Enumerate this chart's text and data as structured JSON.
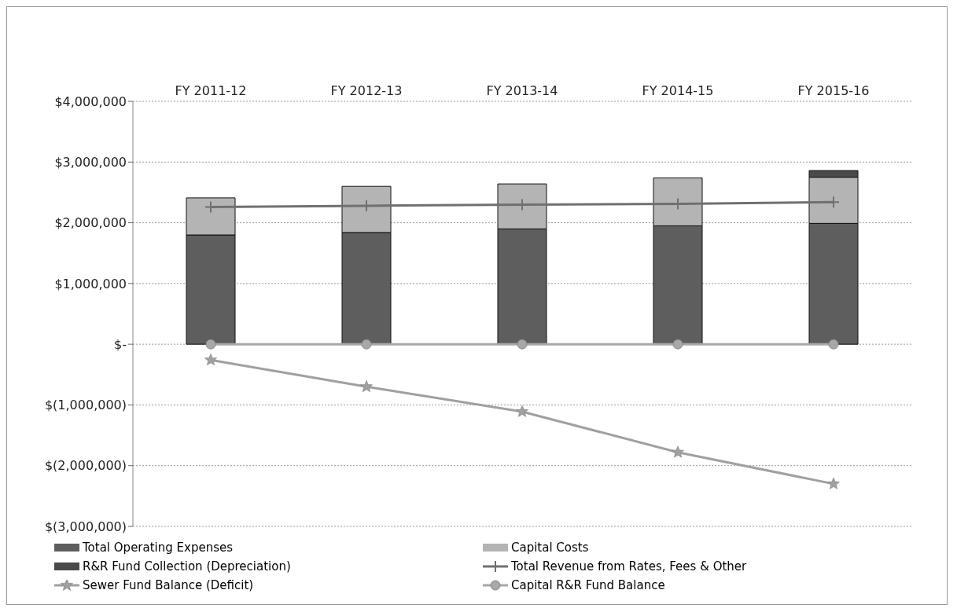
{
  "chart_data": {
    "type": "bar",
    "stacked": true,
    "categories": [
      "FY 2011-12",
      "FY 2012-13",
      "FY 2013-14",
      "FY 2014-15",
      "FY 2015-16"
    ],
    "series": [
      {
        "name": "Total Operating Expenses",
        "color": "#5e5e5e",
        "values": [
          1800000,
          1840000,
          1900000,
          1950000,
          1990000
        ]
      },
      {
        "name": "Capital Costs",
        "color": "#b4b4b4",
        "values": [
          610000,
          760000,
          740000,
          790000,
          760000
        ]
      },
      {
        "name": "R&R Fund Collection (Depreciation)",
        "color": "#4a4a4a",
        "values": [
          0,
          0,
          0,
          0,
          110000
        ]
      },
      {
        "name": "Total Revenue from Rates, Fees & Other",
        "type": "line",
        "color": "#707070",
        "marker": "cross",
        "values": [
          2260000,
          2280000,
          2300000,
          2310000,
          2340000
        ]
      },
      {
        "name": "Sewer Fund Balance (Deficit)",
        "type": "line",
        "color": "#a0a0a0",
        "marker": "star",
        "values": [
          -260000,
          -700000,
          -1110000,
          -1780000,
          -2300000
        ]
      },
      {
        "name": "Capital R&R Fund Balance",
        "type": "line",
        "color": "#a8a8a8",
        "marker": "circle",
        "values": [
          0,
          0,
          0,
          0,
          0
        ]
      }
    ],
    "ylim": [
      -3000000,
      4000000
    ],
    "yticks": [
      {
        "value": -3000000,
        "label": "$(3,000,000)"
      },
      {
        "value": -2000000,
        "label": "$(2,000,000)"
      },
      {
        "value": -1000000,
        "label": "$(1,000,000)"
      },
      {
        "value": 0,
        "label": "$-"
      },
      {
        "value": 1000000,
        "label": "$1,000,000"
      },
      {
        "value": 2000000,
        "label": "$2,000,000"
      },
      {
        "value": 3000000,
        "label": "$3,000,000"
      },
      {
        "value": 4000000,
        "label": "$4,000,000"
      }
    ],
    "grid": "y",
    "legend": "bottom"
  }
}
